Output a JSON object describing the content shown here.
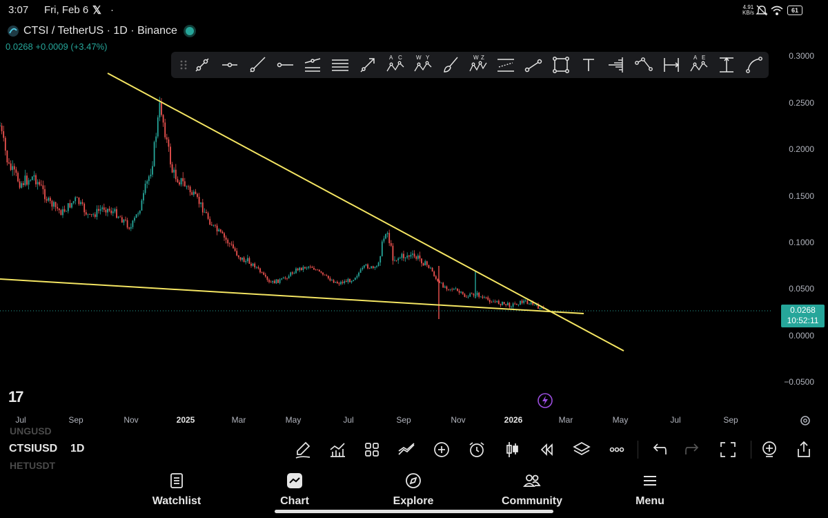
{
  "status_bar": {
    "time": "3:07",
    "date": "Fri, Feb 6",
    "net_speed_value": "4.91",
    "net_speed_unit": "KB/s",
    "battery": "61"
  },
  "header": {
    "symbol": "CTSI / TetherUS · 1D · Binance",
    "last_price": "0.0268",
    "change": "+0.0009 (+3.47%)"
  },
  "chart": {
    "y_ticks": [
      "0.3000",
      "0.2500",
      "0.2000",
      "0.1500",
      "0.1000",
      "0.0500",
      "0.0000",
      "−0.0500"
    ],
    "x_ticks": [
      "Jul",
      "Sep",
      "Nov",
      "2025",
      "Mar",
      "May",
      "Jul",
      "Sep",
      "Nov",
      "2026",
      "Mar",
      "May",
      "Jul",
      "Sep"
    ],
    "price_tag": "0.0268",
    "countdown": "10:52:11",
    "logo": "17",
    "colors": {
      "up": "#26a69a",
      "down": "#ef5350",
      "trendline": "#f5e663",
      "toolbar": "#1b1c1f"
    }
  },
  "drawing_toolbar": {
    "tools": [
      "grip-handle",
      "trend-line-tool",
      "horizontal-ray-tool",
      "ray-tool",
      "horizontal-line-tool",
      "parallel-channel-tool",
      "horizontal-lines-tool",
      "arrow-tool",
      "abcd-pattern-tool",
      "wxy-pattern-tool",
      "brush-tool",
      "wxyxz-pattern-tool",
      "regression-trend-tool",
      "info-line-tool",
      "rectangle-tool",
      "text-tool",
      "volume-profile-tool",
      "path-tool",
      "date-range-tool",
      "ae-pattern-tool",
      "price-range-tool",
      "curve-tool"
    ],
    "label_a": "A",
    "label_c": "C",
    "label_w": "W",
    "label_y": "Y",
    "label_z": "Z",
    "label_e": "E"
  },
  "bottom_bar": {
    "ghost_above": "UNGUSD",
    "symbol": "CTSIUSD",
    "ghost_below": "HETUSDT",
    "interval": "1D",
    "icons": [
      "pencil-icon",
      "indicators-icon",
      "templates-icon",
      "compare-icon",
      "add-icon",
      "alert-icon",
      "candles-icon",
      "replay-icon",
      "layers-icon",
      "more-icon",
      "undo-icon",
      "redo-icon",
      "fullscreen-icon",
      "add-layout-icon",
      "share-icon"
    ]
  },
  "nav": {
    "items": [
      {
        "label": "Watchlist",
        "icon": "watchlist-icon"
      },
      {
        "label": "Chart",
        "icon": "chart-icon"
      },
      {
        "label": "Explore",
        "icon": "explore-icon"
      },
      {
        "label": "Community",
        "icon": "community-icon"
      },
      {
        "label": "Menu",
        "icon": "menu-icon"
      }
    ]
  }
}
